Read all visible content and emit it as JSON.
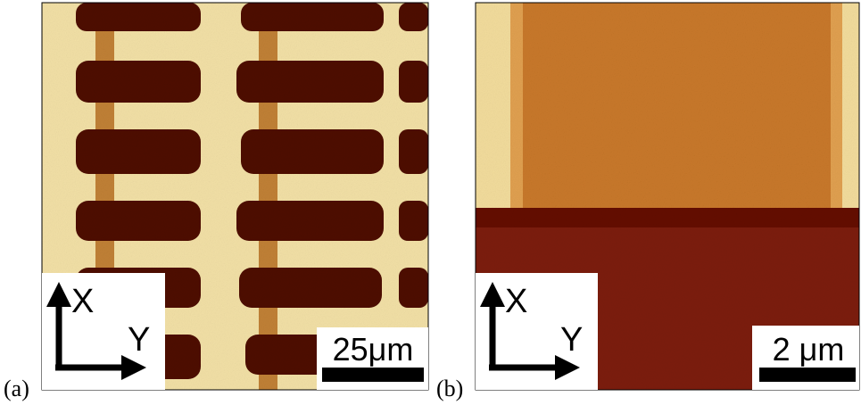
{
  "panels": [
    {
      "label": "(a)",
      "axis_x": "X",
      "axis_y": "Y",
      "scale_bar": "25μm"
    },
    {
      "label": "(b)",
      "axis_x": "X",
      "axis_y": "Y",
      "scale_bar": "2 μm"
    }
  ]
}
